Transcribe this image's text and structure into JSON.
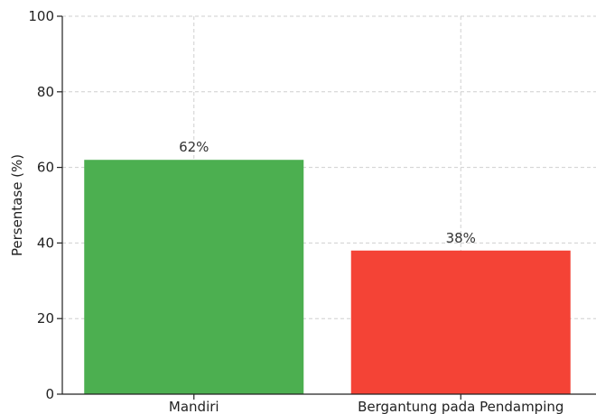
{
  "chart_data": {
    "type": "bar",
    "title": "",
    "xlabel": "",
    "ylabel": "Persentase (%)",
    "ylim": [
      0,
      100
    ],
    "yticks": [
      0,
      20,
      40,
      60,
      80,
      100
    ],
    "categories": [
      "Mandiri",
      "Bergantung pada Pendamping"
    ],
    "values": [
      62,
      38
    ],
    "data_labels": [
      "62%",
      "38%"
    ],
    "colors": [
      "#4caf50",
      "#f44336"
    ],
    "grid": true,
    "legend": "none"
  }
}
